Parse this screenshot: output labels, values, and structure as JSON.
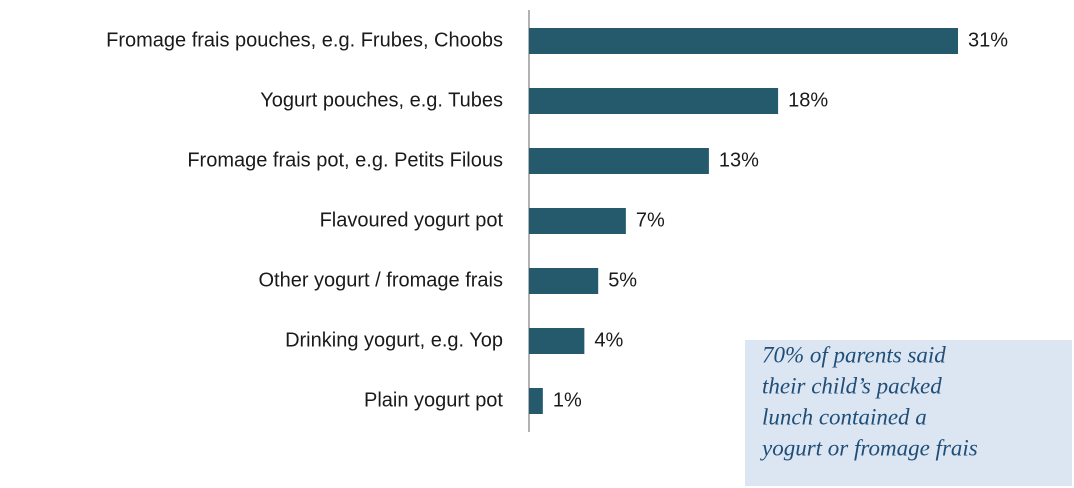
{
  "chart_data": {
    "type": "bar",
    "orientation": "horizontal",
    "categories": [
      "Fromage frais pouches, e.g. Frubes, Choobs",
      "Yogurt pouches, e.g. Tubes",
      "Fromage frais pot, e.g. Petits Filous",
      "Flavoured yogurt pot",
      "Other yogurt / fromage frais",
      "Drinking yogurt, e.g. Yop",
      "Plain yogurt pot"
    ],
    "values": [
      31,
      18,
      13,
      7,
      5,
      4,
      1
    ],
    "value_labels": [
      "31%",
      "18%",
      "13%",
      "7%",
      "5%",
      "4%",
      "1%"
    ],
    "color": "#245a6b",
    "annotation": [
      "70% of parents said",
      "their child’s packed",
      "lunch contained a",
      "yogurt or fromage frais"
    ]
  }
}
